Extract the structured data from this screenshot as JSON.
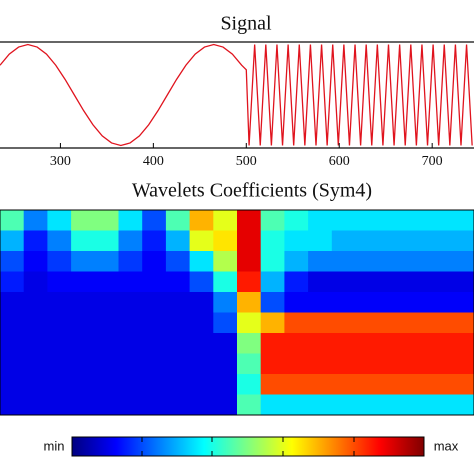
{
  "chart_data": [
    {
      "type": "line",
      "title": "Signal",
      "color": "#e0141e",
      "xlim": [
        235,
        745
      ],
      "xticks": [
        300,
        400,
        500,
        600,
        700
      ],
      "ylim": [
        -1.05,
        1.05
      ],
      "x": [
        235,
        245,
        255,
        265,
        275,
        285,
        295,
        305,
        315,
        325,
        335,
        345,
        355,
        365,
        375,
        385,
        395,
        405,
        415,
        425,
        435,
        445,
        455,
        465,
        475,
        485,
        495,
        500,
        503,
        506,
        509,
        512,
        515,
        518,
        521,
        524,
        527,
        530,
        533,
        536,
        539,
        542,
        545,
        548,
        551,
        554,
        557,
        560,
        563,
        566,
        569,
        572,
        575,
        578,
        581,
        584,
        587,
        590,
        593,
        596,
        599,
        602,
        605,
        608,
        611,
        614,
        617,
        620,
        623,
        626,
        629,
        632,
        635,
        638,
        641,
        644,
        647,
        650,
        653,
        656,
        659,
        662,
        665,
        668,
        671,
        674,
        677,
        680,
        683,
        686,
        689,
        692,
        695,
        698,
        701,
        704,
        707,
        710,
        713,
        716,
        719,
        722,
        725,
        728,
        731,
        734,
        737,
        740,
        743
      ],
      "values": [
        0.59,
        0.81,
        0.95,
        1,
        0.95,
        0.81,
        0.59,
        0.31,
        0,
        -0.31,
        -0.59,
        -0.81,
        -0.95,
        -1,
        -0.95,
        -0.81,
        -0.59,
        -0.31,
        0,
        0.31,
        0.59,
        0.81,
        0.95,
        1,
        0.95,
        0.81,
        0.59,
        0.5,
        -1,
        0,
        1,
        0,
        -1,
        0,
        1,
        0,
        -1,
        0,
        1,
        0,
        -1,
        0,
        1,
        0,
        -1,
        0,
        1,
        0,
        -1,
        0,
        1,
        0,
        -1,
        0,
        1,
        0,
        -1,
        0,
        1,
        0,
        -1,
        0,
        1,
        0,
        -1,
        0,
        1,
        0,
        -1,
        0,
        1,
        0,
        -1,
        0,
        1,
        0,
        -1,
        0,
        1,
        0,
        -1,
        0,
        1,
        0,
        -1,
        0,
        1,
        0,
        -1,
        0,
        1,
        0,
        -1,
        0,
        1,
        0,
        -1,
        0,
        1,
        0,
        -1,
        0,
        1,
        0,
        -1,
        0,
        1,
        0,
        -1
      ]
    },
    {
      "type": "heatmap",
      "title": "Wavelets Coefficients (Sym4)",
      "colormap": "jet",
      "zlim": [
        0,
        1
      ],
      "colorbar_min": "min",
      "colorbar_max": "max",
      "z": [
        [
          0.45,
          0.25,
          0.35,
          0.5,
          0.5,
          0.35,
          0.2,
          0.45,
          0.7,
          0.6,
          0.9,
          0.45,
          0.4,
          0.35,
          0.35,
          0.35,
          0.35,
          0.35,
          0.35,
          0.35
        ],
        [
          0.3,
          0.15,
          0.25,
          0.4,
          0.4,
          0.25,
          0.15,
          0.3,
          0.6,
          0.65,
          0.9,
          0.4,
          0.35,
          0.35,
          0.3,
          0.3,
          0.3,
          0.3,
          0.3,
          0.3
        ],
        [
          0.2,
          0.12,
          0.18,
          0.25,
          0.25,
          0.18,
          0.12,
          0.2,
          0.35,
          0.55,
          0.9,
          0.4,
          0.3,
          0.25,
          0.25,
          0.25,
          0.25,
          0.25,
          0.25,
          0.25
        ],
        [
          0.15,
          0.1,
          0.12,
          0.12,
          0.12,
          0.12,
          0.12,
          0.12,
          0.2,
          0.4,
          0.85,
          0.3,
          0.15,
          0.1,
          0.1,
          0.1,
          0.1,
          0.1,
          0.1,
          0.1
        ],
        [
          0.1,
          0.1,
          0.1,
          0.1,
          0.1,
          0.1,
          0.1,
          0.1,
          0.1,
          0.25,
          0.7,
          0.2,
          0.12,
          0.12,
          0.12,
          0.12,
          0.12,
          0.12,
          0.12,
          0.12
        ],
        [
          0.1,
          0.1,
          0.1,
          0.1,
          0.1,
          0.1,
          0.1,
          0.1,
          0.1,
          0.2,
          0.6,
          0.7,
          0.8,
          0.8,
          0.8,
          0.8,
          0.8,
          0.8,
          0.8,
          0.8
        ],
        [
          0.1,
          0.1,
          0.1,
          0.1,
          0.1,
          0.1,
          0.1,
          0.1,
          0.1,
          0.1,
          0.5,
          0.85,
          0.85,
          0.85,
          0.85,
          0.85,
          0.85,
          0.85,
          0.85,
          0.85
        ],
        [
          0.1,
          0.1,
          0.1,
          0.1,
          0.1,
          0.1,
          0.1,
          0.1,
          0.1,
          0.1,
          0.45,
          0.85,
          0.85,
          0.85,
          0.85,
          0.85,
          0.85,
          0.85,
          0.85,
          0.85
        ],
        [
          0.1,
          0.1,
          0.1,
          0.1,
          0.1,
          0.1,
          0.1,
          0.1,
          0.1,
          0.1,
          0.4,
          0.8,
          0.8,
          0.8,
          0.8,
          0.8,
          0.8,
          0.8,
          0.8,
          0.8
        ],
        [
          0.1,
          0.1,
          0.1,
          0.1,
          0.1,
          0.1,
          0.1,
          0.1,
          0.1,
          0.1,
          0.45,
          0.35,
          0.35,
          0.35,
          0.35,
          0.35,
          0.35,
          0.35,
          0.35,
          0.35
        ]
      ]
    }
  ]
}
